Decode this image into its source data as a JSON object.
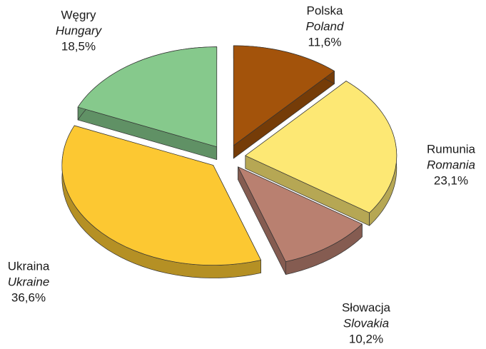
{
  "chart_data": {
    "type": "pie",
    "categories": [
      "Polska",
      "Rumunia",
      "Słowacja",
      "Ukraina",
      "Węgry"
    ],
    "categories_en": [
      "Poland",
      "Romania",
      "Slovakia",
      "Ukraine",
      "Hungary"
    ],
    "values": [
      11.6,
      23.1,
      10.2,
      36.6,
      18.5
    ],
    "value_labels": [
      "11,6%",
      "23,1%",
      "10,2%",
      "36,6%",
      "18,5%"
    ],
    "colors": [
      "#a3530b",
      "#fde874",
      "#b98070",
      "#fcc832",
      "#86c98c"
    ]
  }
}
